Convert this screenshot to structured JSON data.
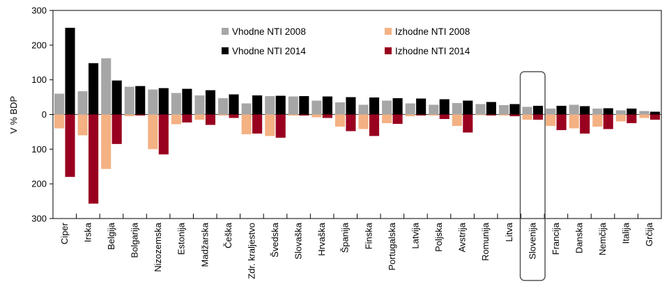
{
  "chart_data": {
    "type": "bar",
    "ylabel": "V % BDP",
    "ylim": [
      -300,
      300
    ],
    "y_ticks": [
      300,
      200,
      100,
      0,
      100,
      200,
      300
    ],
    "y_tick_values": [
      300,
      200,
      100,
      0,
      -100,
      -200,
      -300
    ],
    "legend_position": "top-center",
    "categories": [
      "Ciper",
      "Irska",
      "Belgija",
      "Bolgarija",
      "Nizozemska",
      "Estonija",
      "Madžarska",
      "Češka",
      "Zdr. kraljestvo",
      "Švedska",
      "Slovaška",
      "Hrvaška",
      "Španija",
      "Finska",
      "Portugalska",
      "Latvija",
      "Poljska",
      "Avstrija",
      "Romunija",
      "Litva",
      "Slovenija",
      "Francija",
      "Danska",
      "Nemčija",
      "Italija",
      "Grčija"
    ],
    "highlight_category": "Slovenija",
    "series": [
      {
        "name": "Vhodne NTI 2008",
        "color": "#a6a6a6",
        "values": [
          60,
          67,
          162,
          80,
          72,
          62,
          55,
          47,
          32,
          53,
          52,
          40,
          35,
          28,
          40,
          32,
          28,
          33,
          30,
          27,
          22,
          17,
          28,
          17,
          12,
          10
        ]
      },
      {
        "name": "Izhodne NTI 2008",
        "color": "#f4b183",
        "values": [
          -40,
          -60,
          -157,
          -5,
          -100,
          -28,
          -15,
          -3,
          -57,
          -62,
          -3,
          -8,
          -35,
          -42,
          -25,
          -5,
          -3,
          -33,
          -2,
          -3,
          -15,
          -33,
          -40,
          -35,
          -20,
          -10
        ]
      },
      {
        "name": "Vhodne NTI 2014",
        "color": "#000000",
        "values": [
          250,
          148,
          98,
          82,
          76,
          74,
          70,
          58,
          55,
          54,
          53,
          52,
          50,
          49,
          47,
          46,
          44,
          40,
          36,
          30,
          25,
          25,
          24,
          18,
          17,
          8
        ]
      },
      {
        "name": "Izhodne NTI 2014",
        "color": "#99001f",
        "values": [
          -180,
          -257,
          -85,
          -3,
          -115,
          -23,
          -30,
          -10,
          -55,
          -67,
          -3,
          -10,
          -48,
          -62,
          -27,
          -3,
          -13,
          -52,
          -3,
          -5,
          -15,
          -45,
          -55,
          -42,
          -25,
          -15
        ]
      }
    ]
  }
}
